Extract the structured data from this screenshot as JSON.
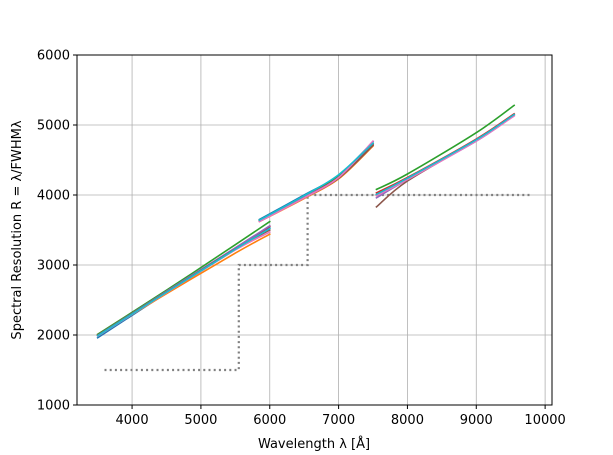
{
  "chart_data": {
    "type": "line",
    "title": "",
    "xlabel": "Wavelength λ [Å]",
    "ylabel": "Spectral Resolution R = λ/FWHMλ",
    "xlim": [
      3200,
      10100
    ],
    "ylim": [
      1000,
      6000
    ],
    "grid": true,
    "legend": "none",
    "xticks": [
      4000,
      5000,
      6000,
      7000,
      8000,
      9000,
      10000
    ],
    "yticks": [
      1000,
      2000,
      3000,
      4000,
      5000,
      6000
    ],
    "xtick_labels": [
      "4000",
      "5000",
      "6000",
      "7000",
      "8000",
      "9000",
      "10000"
    ],
    "ytick_labels": [
      "1000",
      "2000",
      "3000",
      "4000",
      "5000",
      "6000"
    ],
    "threshold": {
      "style": "dotted",
      "color": "#808080",
      "x": [
        3600,
        5550,
        5550,
        6550,
        6550,
        9800
      ],
      "y": [
        1500,
        1500,
        3000,
        3000,
        4000,
        4000
      ]
    },
    "series": [
      {
        "color": "#1f77b4",
        "segments": [
          {
            "x": [
              3500,
              4500,
              5500,
              6000
            ],
            "y": [
              1960,
              2600,
              3220,
              3530
            ]
          },
          {
            "x": [
              5850,
              6500,
              7000,
              7500
            ],
            "y": [
              3650,
              4000,
              4280,
              4760
            ]
          },
          {
            "x": [
              7550,
              8000,
              9000,
              9550
            ],
            "y": [
              4000,
              4230,
              4770,
              5140
            ]
          }
        ]
      },
      {
        "color": "#ff7f0e",
        "segments": [
          {
            "x": [
              3500,
              4500,
              5500,
              6000
            ],
            "y": [
              2000,
              2590,
              3170,
              3440
            ]
          },
          {
            "x": [
              5850,
              6500,
              7000,
              7500
            ],
            "y": [
              3620,
              3950,
              4230,
              4700
            ]
          },
          {
            "x": [
              7550,
              8000,
              9000,
              9550
            ],
            "y": [
              3990,
              4240,
              4790,
              5150
            ]
          }
        ]
      },
      {
        "color": "#2ca02c",
        "segments": [
          {
            "x": [
              3500,
              4500,
              5500,
              6000
            ],
            "y": [
              2010,
              2640,
              3290,
              3620
            ]
          },
          {
            "x": [
              5850,
              6500,
              7000,
              7500
            ],
            "y": [
              3640,
              3980,
              4260,
              4730
            ]
          },
          {
            "x": [
              7550,
              8000,
              9000,
              9550
            ],
            "y": [
              4080,
              4300,
              4890,
              5280
            ]
          }
        ]
      },
      {
        "color": "#d62728",
        "segments": [
          {
            "x": [
              3500,
              4500,
              5500,
              6000
            ],
            "y": [
              1990,
              2620,
              3240,
              3550
            ]
          },
          {
            "x": [
              5850,
              6500,
              7000,
              7500
            ],
            "y": [
              3630,
              3970,
              4250,
              4720
            ]
          },
          {
            "x": [
              7550,
              8000,
              9000,
              9550
            ],
            "y": [
              4030,
              4250,
              4800,
              5160
            ]
          }
        ]
      },
      {
        "color": "#9467bd",
        "segments": [
          {
            "x": [
              3500,
              4500,
              5500,
              6000
            ],
            "y": [
              1995,
              2625,
              3245,
              3560
            ]
          },
          {
            "x": [
              5850,
              6500,
              7000,
              7500
            ],
            "y": [
              3625,
              3965,
              4245,
              4715
            ]
          },
          {
            "x": [
              7550,
              8000,
              9000,
              9550
            ],
            "y": [
              3960,
              4220,
              4780,
              5140
            ]
          }
        ]
      },
      {
        "color": "#8c564b",
        "segments": [
          {
            "x": [
              3500,
              4500,
              5500,
              6000
            ],
            "y": [
              2000,
              2615,
              3230,
              3500
            ]
          },
          {
            "x": [
              5850,
              6500,
              7000,
              7500
            ],
            "y": [
              3630,
              3960,
              4240,
              4710
            ]
          },
          {
            "x": [
              7550,
              8000,
              9000,
              9550
            ],
            "y": [
              3830,
              4200,
              4780,
              5150
            ]
          }
        ]
      },
      {
        "color": "#e377c2",
        "segments": [
          {
            "x": [
              3500,
              4500,
              5500,
              6000
            ],
            "y": [
              1985,
              2605,
              3215,
              3470
            ]
          },
          {
            "x": [
              5850,
              6500,
              7000,
              7500
            ],
            "y": [
              3620,
              3960,
              4250,
              4770
            ]
          },
          {
            "x": [
              7550,
              8000,
              9000,
              9550
            ],
            "y": [
              3990,
              4220,
              4770,
              5130
            ]
          }
        ]
      },
      {
        "color": "#17becf",
        "segments": [
          {
            "x": [
              3500,
              4500,
              5500,
              6000
            ],
            "y": [
              1990,
              2610,
              3225,
              3520
            ]
          },
          {
            "x": [
              5850,
              6500,
              7000,
              7500
            ],
            "y": [
              3640,
              3990,
              4290,
              4740
            ]
          },
          {
            "x": [
              7550,
              8000,
              9000,
              9550
            ],
            "y": [
              4010,
              4240,
              4790,
              5150
            ]
          }
        ]
      }
    ]
  }
}
